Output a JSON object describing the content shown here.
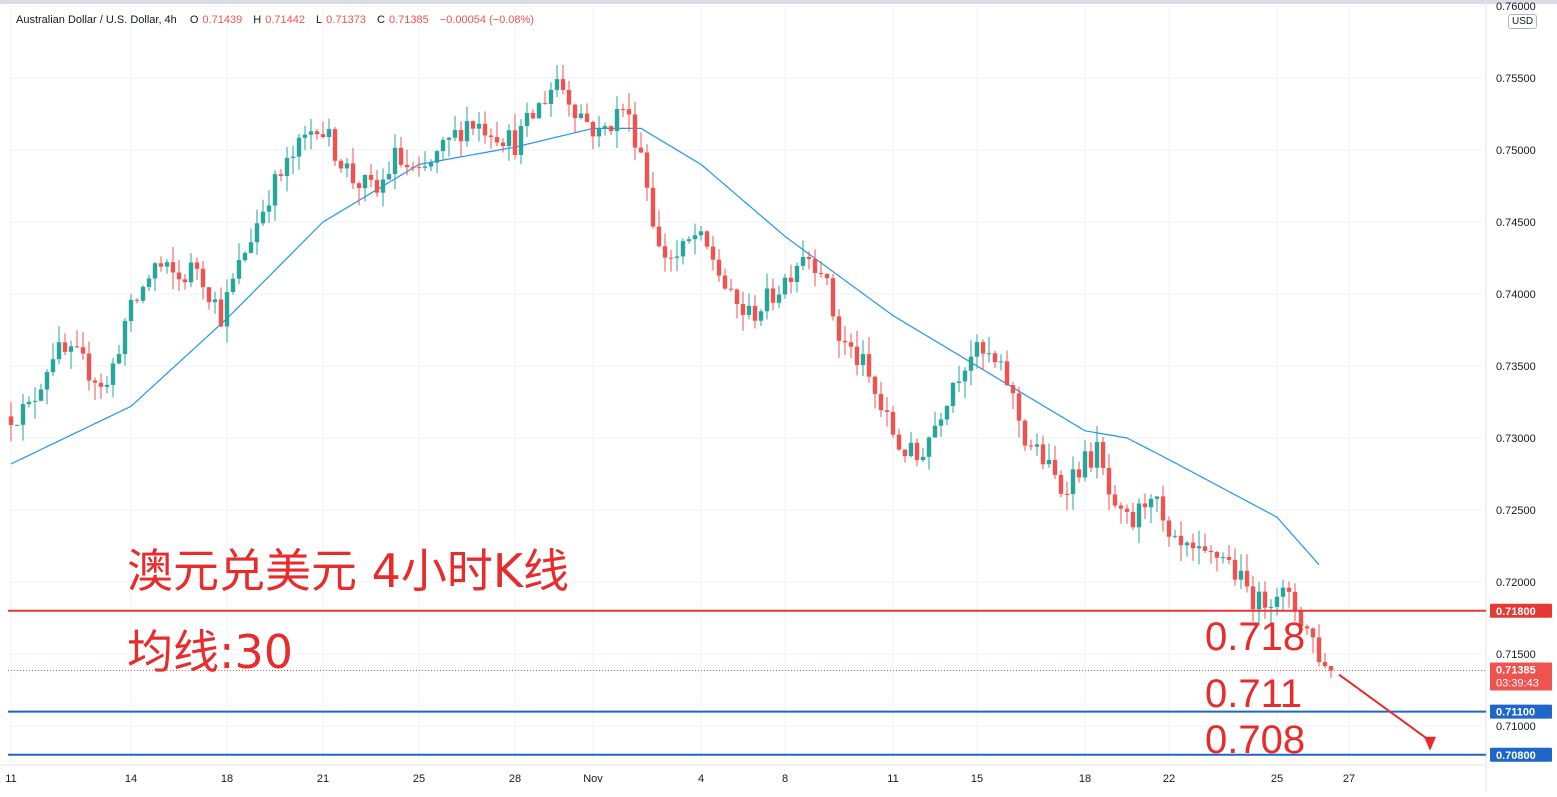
{
  "header": {
    "symbol": "Australian Dollar / U.S. Dollar, 4h",
    "open_label": "O",
    "open": "0.71439",
    "high_label": "H",
    "high": "0.71442",
    "low_label": "L",
    "low": "0.71373",
    "close_label": "C",
    "close": "0.71385",
    "change": "−0.00054 (−0.08%)"
  },
  "currency_badge": "USD",
  "annotations": {
    "title": "澳元兑美元 4小时K线",
    "ma_label": "均线:30",
    "level_1": "0.718",
    "level_2": "0.711",
    "level_3": "0.708"
  },
  "price_badges": {
    "resistance": "0.71800",
    "last_price": "0.71385",
    "countdown": "03:39:43",
    "support_1": "0.71100",
    "support_2": "0.70800"
  },
  "colors": {
    "up": "#26a69a",
    "down": "#ef5350",
    "ma": "#2196f3",
    "resistance": "#e53935",
    "support": "#1e66c8",
    "annotation": "#e82b2b",
    "grid": "#f0f3fa"
  },
  "chart_data": {
    "type": "candlestick",
    "title": "澳元兑美元 4小时K线",
    "y_ticks": [
      "0.76000",
      "0.75500",
      "0.75000",
      "0.74500",
      "0.74000",
      "0.73500",
      "0.73000",
      "0.72500",
      "0.72000",
      "0.71500",
      "0.71000"
    ],
    "ylim": [
      0.7075,
      0.76
    ],
    "x_ticks": [
      {
        "label": "11",
        "bar": 0
      },
      {
        "label": "14",
        "bar": 20
      },
      {
        "label": "18",
        "bar": 36
      },
      {
        "label": "21",
        "bar": 52
      },
      {
        "label": "25",
        "bar": 68
      },
      {
        "label": "28",
        "bar": 84
      },
      {
        "label": "Nov",
        "bar": 97
      },
      {
        "label": "4",
        "bar": 115
      },
      {
        "label": "8",
        "bar": 129
      },
      {
        "label": "11",
        "bar": 147
      },
      {
        "label": "15",
        "bar": 161
      },
      {
        "label": "18",
        "bar": 179
      },
      {
        "label": "22",
        "bar": 193
      },
      {
        "label": "25",
        "bar": 211
      },
      {
        "label": "27",
        "bar": 223
      }
    ],
    "horizontal_lines": [
      {
        "value": 0.718,
        "color": "red"
      },
      {
        "value": 0.711,
        "color": "blue"
      },
      {
        "value": 0.708,
        "color": "blue"
      }
    ],
    "last_price": 0.71385,
    "ma_period": 30,
    "ma_anchors": [
      [
        0,
        0.7282
      ],
      [
        20,
        0.7322
      ],
      [
        36,
        0.7383
      ],
      [
        52,
        0.745
      ],
      [
        68,
        0.749
      ],
      [
        84,
        0.7502
      ],
      [
        97,
        0.7515
      ],
      [
        105,
        0.7515
      ],
      [
        115,
        0.749
      ],
      [
        129,
        0.744
      ],
      [
        147,
        0.7385
      ],
      [
        161,
        0.735
      ],
      [
        179,
        0.7305
      ],
      [
        186,
        0.73
      ],
      [
        193,
        0.7285
      ],
      [
        211,
        0.7245
      ],
      [
        218,
        0.7212
      ]
    ],
    "price_anchors": [
      [
        0,
        0.7315
      ],
      [
        4,
        0.732
      ],
      [
        8,
        0.736
      ],
      [
        12,
        0.7355
      ],
      [
        17,
        0.7335
      ],
      [
        20,
        0.738
      ],
      [
        25,
        0.742
      ],
      [
        29,
        0.741
      ],
      [
        32,
        0.742
      ],
      [
        36,
        0.7385
      ],
      [
        40,
        0.743
      ],
      [
        44,
        0.747
      ],
      [
        48,
        0.7495
      ],
      [
        52,
        0.752
      ],
      [
        55,
        0.75
      ],
      [
        58,
        0.748
      ],
      [
        62,
        0.747
      ],
      [
        65,
        0.7495
      ],
      [
        69,
        0.748
      ],
      [
        73,
        0.75
      ],
      [
        77,
        0.752
      ],
      [
        81,
        0.7515
      ],
      [
        85,
        0.7505
      ],
      [
        89,
        0.753
      ],
      [
        92,
        0.755
      ],
      [
        95,
        0.753
      ],
      [
        99,
        0.751
      ],
      [
        103,
        0.753
      ],
      [
        106,
        0.75
      ],
      [
        109,
        0.743
      ],
      [
        112,
        0.7425
      ],
      [
        115,
        0.744
      ],
      [
        118,
        0.7425
      ],
      [
        121,
        0.7395
      ],
      [
        124,
        0.7385
      ],
      [
        127,
        0.7395
      ],
      [
        130,
        0.741
      ],
      [
        133,
        0.743
      ],
      [
        136,
        0.742
      ],
      [
        139,
        0.737
      ],
      [
        143,
        0.735
      ],
      [
        146,
        0.732
      ],
      [
        149,
        0.7295
      ],
      [
        152,
        0.7285
      ],
      [
        155,
        0.731
      ],
      [
        158,
        0.734
      ],
      [
        161,
        0.736
      ],
      [
        164,
        0.7355
      ],
      [
        167,
        0.734
      ],
      [
        170,
        0.73
      ],
      [
        173,
        0.7285
      ],
      [
        176,
        0.7265
      ],
      [
        179,
        0.728
      ],
      [
        182,
        0.729
      ],
      [
        185,
        0.7245
      ],
      [
        188,
        0.724
      ],
      [
        191,
        0.7265
      ],
      [
        194,
        0.7225
      ],
      [
        197,
        0.722
      ],
      [
        200,
        0.7215
      ],
      [
        203,
        0.722
      ],
      [
        206,
        0.72
      ],
      [
        209,
        0.7185
      ],
      [
        212,
        0.7195
      ],
      [
        215,
        0.7182
      ],
      [
        218,
        0.716
      ],
      [
        220,
        0.714
      ]
    ]
  }
}
